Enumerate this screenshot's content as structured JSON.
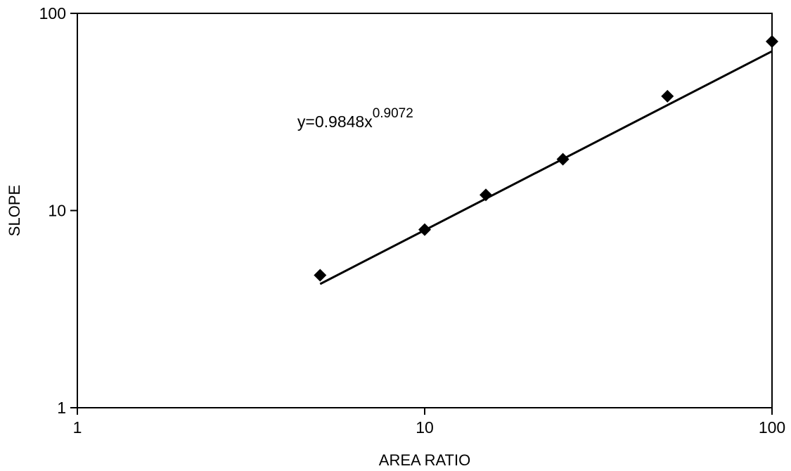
{
  "chart_data": {
    "type": "scatter",
    "title": "",
    "xlabel": "AREA RATIO",
    "ylabel": "SLOPE",
    "x_scale": "log",
    "y_scale": "log",
    "xlim": [
      1,
      100
    ],
    "ylim": [
      1,
      100
    ],
    "x_ticks": [
      1,
      10,
      100
    ],
    "y_ticks": [
      1,
      10,
      100
    ],
    "x_tick_labels": [
      "1",
      "10",
      "100"
    ],
    "y_tick_labels": [
      "1",
      "10",
      "100"
    ],
    "grid": false,
    "legend": "none",
    "series": [
      {
        "marker": "diamond",
        "color": "#000000",
        "x": [
          5,
          10,
          15,
          25,
          50,
          100
        ],
        "y": [
          4.7,
          8.0,
          12.0,
          18.2,
          38.0,
          72.0
        ]
      }
    ],
    "trendline": {
      "type": "power",
      "coefficient": 0.9848,
      "exponent": 0.9072,
      "x_range": [
        5,
        100
      ],
      "color": "#000000"
    },
    "annotations": [
      {
        "text_base": "y=0.9848x",
        "text_exponent": "0.9072",
        "anchor_x": 4.3,
        "anchor_y": 26.5
      }
    ]
  }
}
